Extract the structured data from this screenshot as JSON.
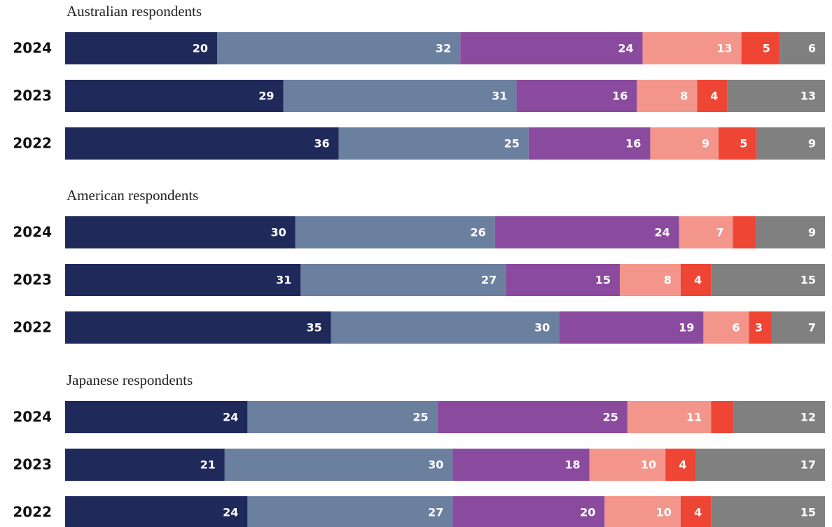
{
  "chart_data": [
    {
      "type": "stacked-bar-100",
      "title": "Australian respondents",
      "categories": [
        "2024",
        "2023",
        "2022"
      ],
      "series": [
        {
          "color": "#1f295a",
          "values": [
            20,
            29,
            36
          ]
        },
        {
          "color": "#6b7f9f",
          "values": [
            32,
            31,
            25
          ]
        },
        {
          "color": "#8a4a9e",
          "values": [
            24,
            16,
            16
          ]
        },
        {
          "color": "#f4958b",
          "values": [
            13,
            8,
            9
          ]
        },
        {
          "color": "#ee4535",
          "values": [
            5,
            4,
            5
          ]
        },
        {
          "color": "#808080",
          "values": [
            6,
            13,
            9
          ]
        }
      ]
    },
    {
      "type": "stacked-bar-100",
      "title": "American respondents",
      "categories": [
        "2024",
        "2023",
        "2022"
      ],
      "series": [
        {
          "color": "#1f295a",
          "values": [
            30,
            31,
            35
          ]
        },
        {
          "color": "#6b7f9f",
          "values": [
            26,
            27,
            30
          ]
        },
        {
          "color": "#8a4a9e",
          "values": [
            24,
            15,
            19
          ]
        },
        {
          "color": "#f4958b",
          "values": [
            7,
            8,
            6
          ]
        },
        {
          "color": "#ee4535",
          "values": [
            3,
            4,
            3
          ],
          "value_labels": [
            null,
            "4",
            "3"
          ]
        },
        {
          "color": "#808080",
          "values": [
            9,
            15,
            7
          ]
        }
      ]
    },
    {
      "type": "stacked-bar-100",
      "title": "Japanese respondents",
      "categories": [
        "2024",
        "2023",
        "2022"
      ],
      "series": [
        {
          "color": "#1f295a",
          "values": [
            24,
            21,
            24
          ]
        },
        {
          "color": "#6b7f9f",
          "values": [
            25,
            30,
            27
          ]
        },
        {
          "color": "#8a4a9e",
          "values": [
            25,
            18,
            20
          ]
        },
        {
          "color": "#f4958b",
          "values": [
            11,
            10,
            10
          ]
        },
        {
          "color": "#ee4535",
          "values": [
            3,
            4,
            4
          ],
          "value_labels": [
            null,
            "4",
            "4"
          ]
        },
        {
          "color": "#808080",
          "values": [
            12,
            17,
            15
          ]
        }
      ]
    }
  ]
}
